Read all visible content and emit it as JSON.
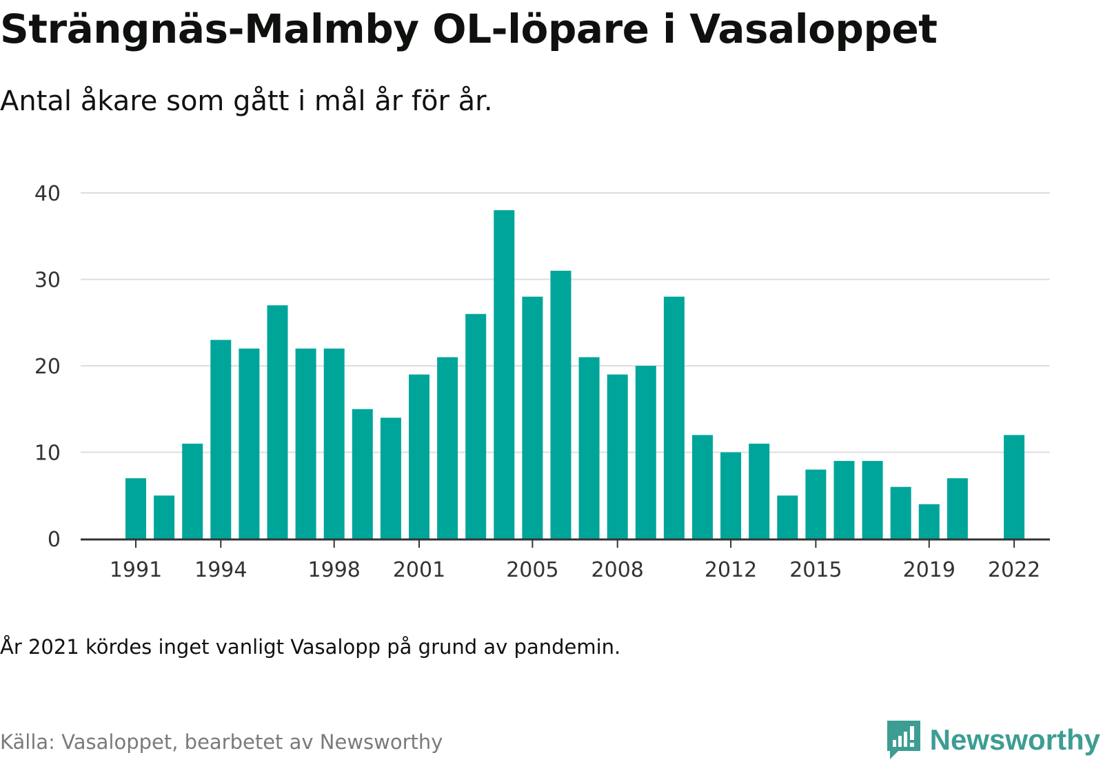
{
  "header": {
    "title": "Strängnäs-Malmby OL-löpare i Vasaloppet",
    "subtitle": "Antal åkare som gått i mål år för år."
  },
  "footer": {
    "note": "År 2021 kördes inget vanligt Vasalopp på grund av pandemin.",
    "source": "Källa: Vasaloppet, bearbetet av Newsworthy",
    "logo_text": "Newsworthy"
  },
  "colors": {
    "bar": "#00a59a",
    "grid": "#dddddd",
    "axis": "#333333",
    "logo": "#3d9d93"
  },
  "chart_data": {
    "type": "bar",
    "title": "Strängnäs-Malmby OL-löpare i Vasaloppet",
    "subtitle": "Antal åkare som gått i mål år för år.",
    "xlabel": "",
    "ylabel": "",
    "categories": [
      1991,
      1992,
      1993,
      1994,
      1995,
      1996,
      1997,
      1998,
      1999,
      2000,
      2001,
      2002,
      2003,
      2004,
      2005,
      2006,
      2007,
      2008,
      2009,
      2010,
      2011,
      2012,
      2013,
      2014,
      2015,
      2016,
      2017,
      2018,
      2019,
      2020,
      2021,
      2022
    ],
    "values": [
      7,
      5,
      11,
      23,
      22,
      27,
      22,
      22,
      15,
      14,
      19,
      21,
      26,
      38,
      28,
      31,
      21,
      19,
      20,
      28,
      12,
      10,
      11,
      5,
      8,
      9,
      9,
      6,
      4,
      7,
      null,
      12
    ],
    "x_tick_labels": [
      "1991",
      "1994",
      "1998",
      "2001",
      "2005",
      "2008",
      "2012",
      "2015",
      "2019",
      "2022"
    ],
    "y_tick_labels": [
      "0",
      "10",
      "20",
      "30",
      "40"
    ],
    "ylim": [
      0,
      40
    ],
    "grid": true,
    "legend": "none"
  }
}
